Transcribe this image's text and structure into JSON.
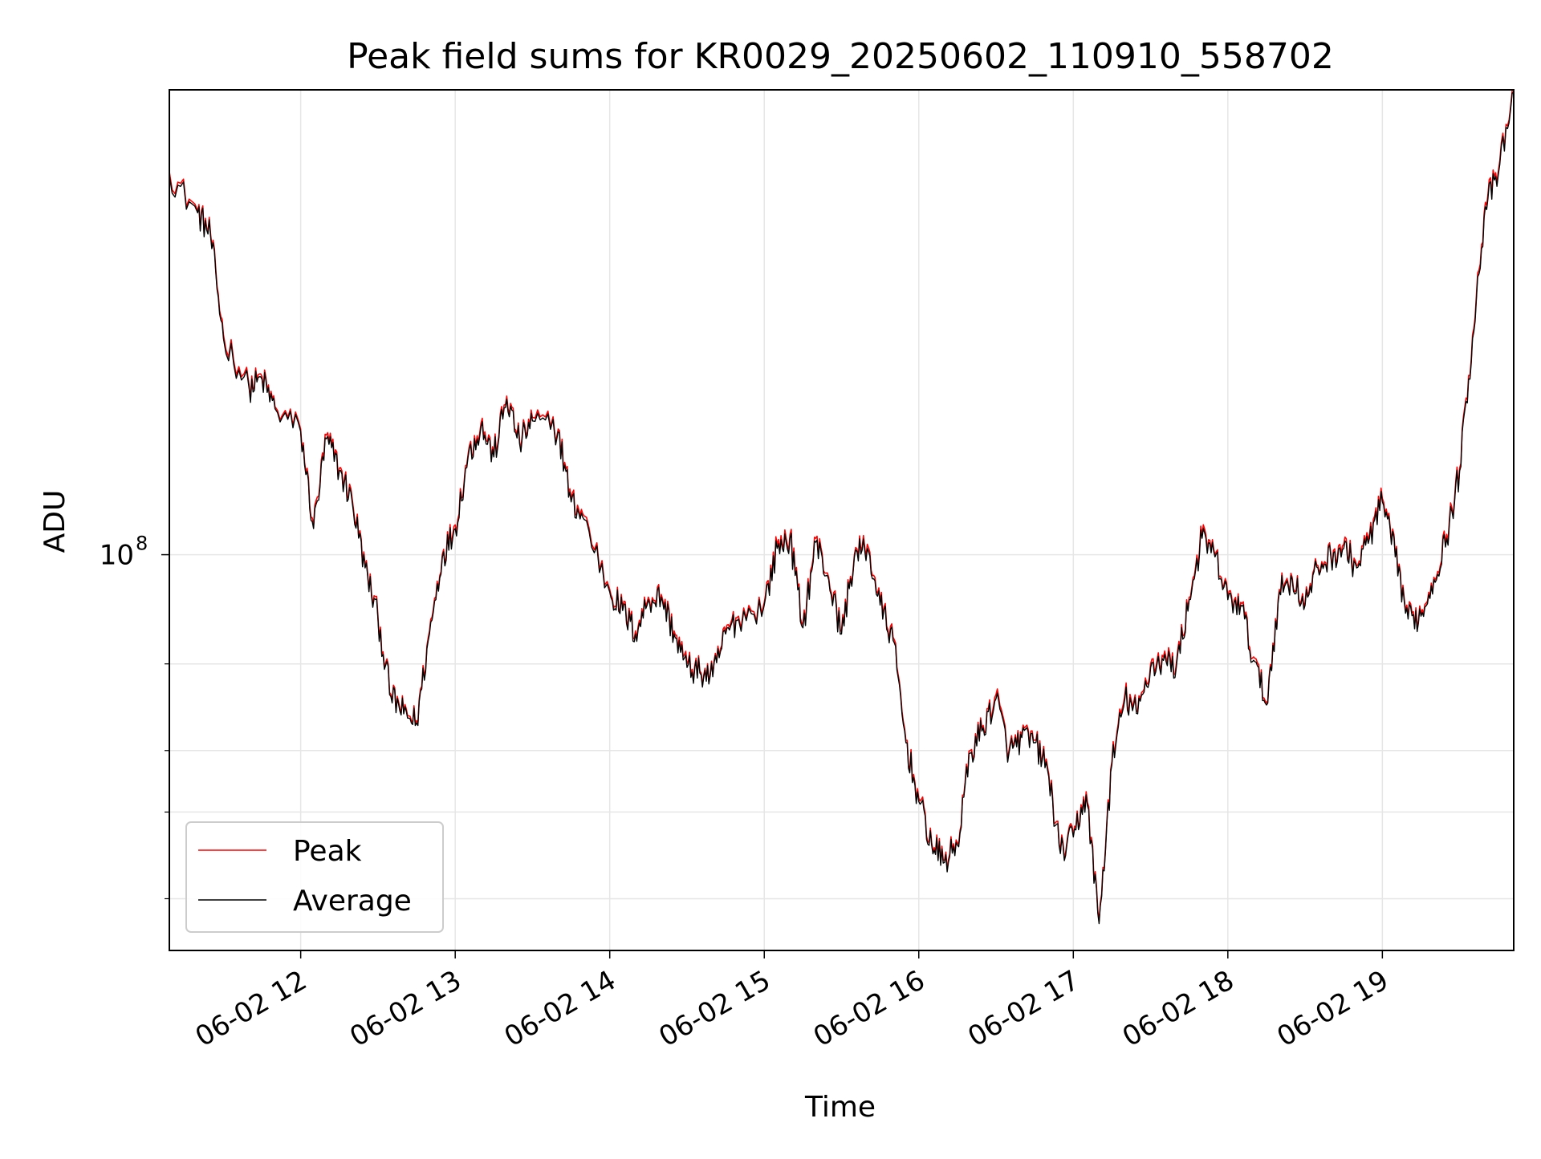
{
  "chart_data": {
    "type": "line",
    "title": "Peak field sums for KR0029_20250602_110910_558702",
    "xlabel": "Time",
    "ylabel": "ADU",
    "y_scale": "log",
    "ylim": [
      15700000,
      880000000
    ],
    "xlim": [
      "06-02 11:09",
      "06-02 19:51"
    ],
    "x_ticks": [
      "06-02 12",
      "06-02 13",
      "06-02 14",
      "06-02 15",
      "06-02 16",
      "06-02 17",
      "06-02 18",
      "06-02 19"
    ],
    "y_major_ticks": [
      {
        "value": 100000000,
        "label": "10",
        "exponent": "8"
      }
    ],
    "y_minor_ticks": [
      20000000,
      30000000,
      40000000,
      60000000
    ],
    "grid": true,
    "legend_position": "lower-left",
    "x": [
      "11:09",
      "11:20",
      "11:25",
      "11:30",
      "11:40",
      "11:45",
      "11:50",
      "12:00",
      "12:05",
      "12:10",
      "12:15",
      "12:20",
      "12:25",
      "12:30",
      "12:35",
      "12:40",
      "12:45",
      "12:50",
      "12:55",
      "13:00",
      "13:05",
      "13:10",
      "13:15",
      "13:20",
      "13:25",
      "13:30",
      "13:40",
      "13:45",
      "13:50",
      "14:00",
      "14:05",
      "14:10",
      "14:15",
      "14:20",
      "14:25",
      "14:30",
      "14:35",
      "14:40",
      "14:45",
      "14:50",
      "15:00",
      "15:05",
      "15:10",
      "15:15",
      "15:20",
      "15:25",
      "15:30",
      "15:35",
      "15:40",
      "15:45",
      "15:50",
      "15:55",
      "16:00",
      "16:05",
      "16:10",
      "16:15",
      "16:20",
      "16:25",
      "16:30",
      "16:35",
      "16:40",
      "16:45",
      "16:50",
      "16:55",
      "17:00",
      "17:05",
      "17:10",
      "17:15",
      "17:20",
      "17:25",
      "17:30",
      "17:35",
      "17:40",
      "17:45",
      "17:50",
      "17:55",
      "18:00",
      "18:05",
      "18:10",
      "18:15",
      "18:20",
      "18:25",
      "18:30",
      "18:35",
      "18:40",
      "18:45",
      "18:50",
      "18:55",
      "19:00",
      "19:05",
      "19:10",
      "19:15",
      "19:20",
      "19:25",
      "19:30",
      "19:35",
      "19:40",
      "19:45",
      "19:51"
    ],
    "series": [
      {
        "name": "Peak",
        "color": "#ff0000",
        "values": [
          600000000,
          500000000,
          450000000,
          280000000,
          220000000,
          230000000,
          200000000,
          180000000,
          115000000,
          175000000,
          150000000,
          130000000,
          95000000,
          75000000,
          52000000,
          48000000,
          46000000,
          70000000,
          100000000,
          115000000,
          160000000,
          185000000,
          160000000,
          210000000,
          170000000,
          190000000,
          180000000,
          130000000,
          120000000,
          85000000,
          78000000,
          70000000,
          82000000,
          83000000,
          70000000,
          60000000,
          58000000,
          57000000,
          70000000,
          75000000,
          80000000,
          105000000,
          110000000,
          72000000,
          108000000,
          90000000,
          70000000,
          100000000,
          105000000,
          80000000,
          68000000,
          42000000,
          32000000,
          26000000,
          24000000,
          26000000,
          40000000,
          45000000,
          52000000,
          40000000,
          43000000,
          42000000,
          37000000,
          25000000,
          27000000,
          33000000,
          18000000,
          38000000,
          52000000,
          48000000,
          60000000,
          62000000,
          60000000,
          82000000,
          110000000,
          100000000,
          82000000,
          80000000,
          62000000,
          50000000,
          85000000,
          90000000,
          80000000,
          95000000,
          100000000,
          105000000,
          95000000,
          110000000,
          130000000,
          100000000,
          75000000,
          76000000,
          90000000,
          110000000,
          150000000,
          280000000,
          520000000,
          600000000,
          880000000
        ]
      },
      {
        "name": "Average",
        "color": "#000000",
        "values": [
          590000000,
          495000000,
          445000000,
          275000000,
          217000000,
          227000000,
          198000000,
          178000000,
          113000000,
          172000000,
          148000000,
          128000000,
          94000000,
          74000000,
          51500000,
          47500000,
          45500000,
          69000000,
          99000000,
          113000000,
          158000000,
          182000000,
          158000000,
          207000000,
          168000000,
          187000000,
          178000000,
          128000000,
          118000000,
          84000000,
          77000000,
          69000000,
          81000000,
          82000000,
          69000000,
          59000000,
          57500000,
          56500000,
          69000000,
          74000000,
          79000000,
          103000000,
          108000000,
          71000000,
          106000000,
          89000000,
          69000000,
          99000000,
          103000000,
          79000000,
          67000000,
          41500000,
          31500000,
          25700000,
          23700000,
          25700000,
          39500000,
          44500000,
          51000000,
          39500000,
          42500000,
          41500000,
          36500000,
          24700000,
          26700000,
          32500000,
          17800000,
          37500000,
          51000000,
          47500000,
          59000000,
          61000000,
          59000000,
          81000000,
          108000000,
          99000000,
          81000000,
          79000000,
          61000000,
          49500000,
          84000000,
          89000000,
          79000000,
          94000000,
          99000000,
          103000000,
          94000000,
          108000000,
          128000000,
          99000000,
          74000000,
          75000000,
          89000000,
          108000000,
          148000000,
          275000000,
          510000000,
          590000000,
          870000000
        ]
      }
    ]
  }
}
